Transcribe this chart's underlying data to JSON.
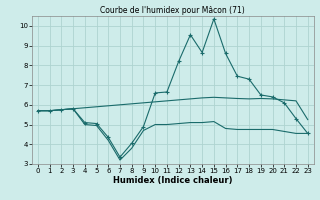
{
  "title": "Courbe de l'humidex pour Mâcon (71)",
  "xlabel": "Humidex (Indice chaleur)",
  "xlim": [
    -0.5,
    23.5
  ],
  "ylim": [
    3,
    10.5
  ],
  "yticks": [
    3,
    4,
    5,
    6,
    7,
    8,
    9,
    10
  ],
  "xticks": [
    0,
    1,
    2,
    3,
    4,
    5,
    6,
    7,
    8,
    9,
    10,
    11,
    12,
    13,
    14,
    15,
    16,
    17,
    18,
    19,
    20,
    21,
    22,
    23
  ],
  "bg_color": "#ceecea",
  "grid_color": "#aed4d0",
  "line_color": "#1a6b6b",
  "line1_x": [
    0,
    1,
    2,
    3,
    4,
    5,
    6,
    7,
    8,
    9,
    10,
    11,
    12,
    13,
    14,
    15,
    16,
    17,
    18,
    19,
    20,
    21,
    22,
    23
  ],
  "line1_y": [
    5.7,
    5.7,
    5.75,
    5.8,
    5.85,
    5.9,
    5.95,
    6.0,
    6.05,
    6.1,
    6.15,
    6.2,
    6.25,
    6.3,
    6.35,
    6.38,
    6.35,
    6.32,
    6.3,
    6.32,
    6.3,
    6.25,
    6.2,
    5.25
  ],
  "line2_x": [
    0,
    1,
    2,
    3,
    4,
    5,
    6,
    7,
    8,
    9,
    10,
    11,
    12,
    13,
    14,
    15,
    16,
    17,
    18,
    19,
    20,
    21,
    22,
    23
  ],
  "line2_y": [
    5.7,
    5.7,
    5.75,
    5.8,
    5.1,
    5.05,
    4.35,
    3.35,
    4.05,
    4.9,
    6.6,
    6.65,
    8.2,
    9.55,
    8.65,
    10.35,
    8.6,
    7.45,
    7.3,
    6.5,
    6.4,
    6.1,
    5.3,
    4.55
  ],
  "line3_x": [
    0,
    1,
    2,
    3,
    4,
    5,
    6,
    7,
    8,
    9,
    10,
    11,
    12,
    13,
    14,
    15,
    16,
    17,
    18,
    19,
    20,
    21,
    22,
    23
  ],
  "line3_y": [
    5.7,
    5.7,
    5.75,
    5.8,
    5.0,
    4.95,
    4.2,
    3.2,
    3.8,
    4.7,
    5.0,
    5.0,
    5.05,
    5.1,
    5.1,
    5.15,
    4.8,
    4.75,
    4.75,
    4.75,
    4.75,
    4.65,
    4.55,
    4.55
  ]
}
